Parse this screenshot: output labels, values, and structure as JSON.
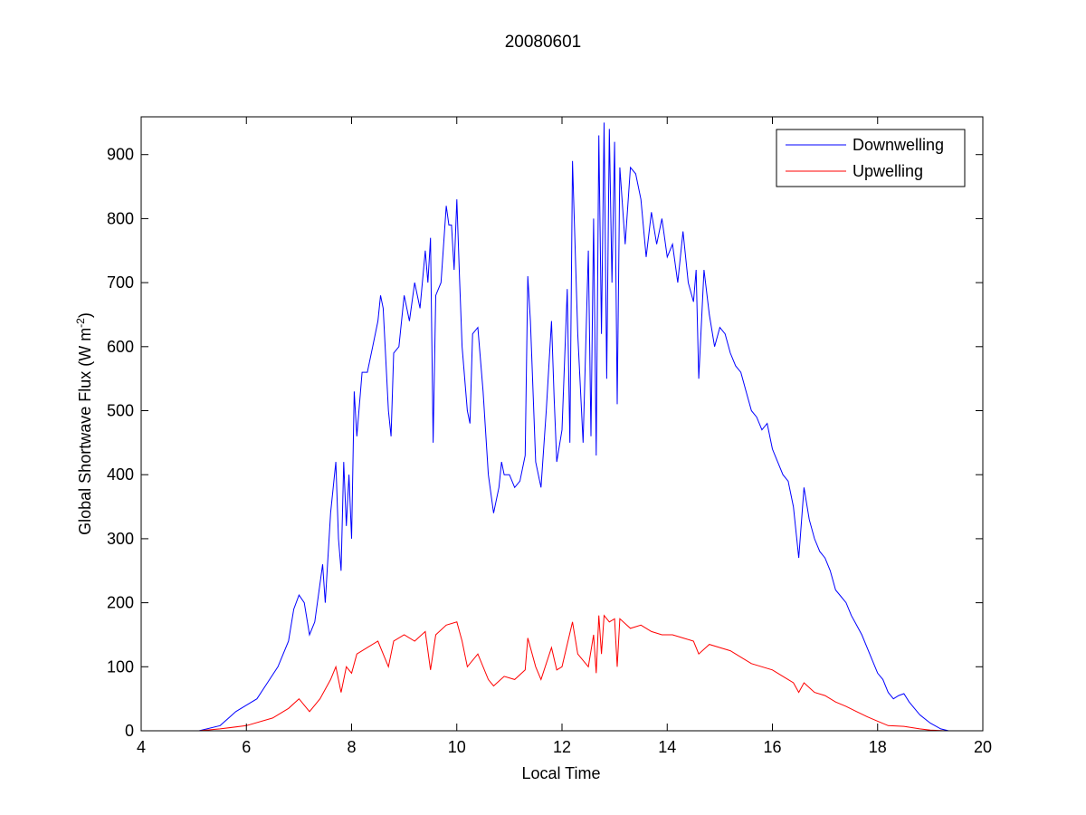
{
  "chart_data": {
    "type": "line",
    "title": "20080601",
    "xlabel": "Local Time",
    "ylabel": "Global Shortwave Flux (W m",
    "ylabel_sup": "-2",
    "ylabel_close": ")",
    "xlim": [
      4,
      20
    ],
    "ylim": [
      0,
      959
    ],
    "xticks": [
      4,
      6,
      8,
      10,
      12,
      14,
      16,
      18,
      20
    ],
    "yticks": [
      0,
      100,
      200,
      300,
      400,
      500,
      600,
      700,
      800,
      900
    ],
    "grid": false,
    "legend_placement": "top-right",
    "series": [
      {
        "name": "Downwelling",
        "color": "#0000ff",
        "points": [
          [
            5.1,
            0
          ],
          [
            5.5,
            8
          ],
          [
            5.8,
            30
          ],
          [
            6.0,
            40
          ],
          [
            6.2,
            50
          ],
          [
            6.4,
            75
          ],
          [
            6.6,
            100
          ],
          [
            6.8,
            140
          ],
          [
            6.9,
            190
          ],
          [
            7.0,
            212
          ],
          [
            7.1,
            200
          ],
          [
            7.2,
            150
          ],
          [
            7.3,
            170
          ],
          [
            7.4,
            230
          ],
          [
            7.45,
            260
          ],
          [
            7.5,
            200
          ],
          [
            7.6,
            340
          ],
          [
            7.7,
            420
          ],
          [
            7.75,
            300
          ],
          [
            7.8,
            250
          ],
          [
            7.85,
            420
          ],
          [
            7.9,
            320
          ],
          [
            7.95,
            400
          ],
          [
            8.0,
            300
          ],
          [
            8.05,
            530
          ],
          [
            8.1,
            460
          ],
          [
            8.2,
            560
          ],
          [
            8.3,
            560
          ],
          [
            8.4,
            600
          ],
          [
            8.5,
            640
          ],
          [
            8.55,
            680
          ],
          [
            8.6,
            660
          ],
          [
            8.7,
            500
          ],
          [
            8.75,
            460
          ],
          [
            8.8,
            590
          ],
          [
            8.9,
            600
          ],
          [
            9.0,
            680
          ],
          [
            9.1,
            640
          ],
          [
            9.2,
            700
          ],
          [
            9.3,
            660
          ],
          [
            9.4,
            750
          ],
          [
            9.45,
            700
          ],
          [
            9.5,
            770
          ],
          [
            9.55,
            450
          ],
          [
            9.6,
            680
          ],
          [
            9.7,
            700
          ],
          [
            9.8,
            820
          ],
          [
            9.85,
            790
          ],
          [
            9.9,
            790
          ],
          [
            9.95,
            720
          ],
          [
            10.0,
            830
          ],
          [
            10.05,
            710
          ],
          [
            10.1,
            600
          ],
          [
            10.2,
            500
          ],
          [
            10.25,
            480
          ],
          [
            10.3,
            620
          ],
          [
            10.4,
            630
          ],
          [
            10.5,
            530
          ],
          [
            10.6,
            400
          ],
          [
            10.7,
            340
          ],
          [
            10.8,
            380
          ],
          [
            10.85,
            420
          ],
          [
            10.9,
            400
          ],
          [
            11.0,
            400
          ],
          [
            11.1,
            380
          ],
          [
            11.2,
            390
          ],
          [
            11.3,
            430
          ],
          [
            11.35,
            710
          ],
          [
            11.4,
            640
          ],
          [
            11.5,
            420
          ],
          [
            11.6,
            380
          ],
          [
            11.7,
            500
          ],
          [
            11.8,
            640
          ],
          [
            11.85,
            520
          ],
          [
            11.9,
            420
          ],
          [
            12.0,
            470
          ],
          [
            12.1,
            690
          ],
          [
            12.15,
            450
          ],
          [
            12.2,
            890
          ],
          [
            12.3,
            620
          ],
          [
            12.4,
            450
          ],
          [
            12.5,
            750
          ],
          [
            12.55,
            460
          ],
          [
            12.6,
            800
          ],
          [
            12.65,
            430
          ],
          [
            12.7,
            930
          ],
          [
            12.75,
            620
          ],
          [
            12.8,
            950
          ],
          [
            12.85,
            550
          ],
          [
            12.9,
            940
          ],
          [
            12.95,
            700
          ],
          [
            13.0,
            920
          ],
          [
            13.05,
            510
          ],
          [
            13.1,
            880
          ],
          [
            13.2,
            760
          ],
          [
            13.3,
            880
          ],
          [
            13.4,
            870
          ],
          [
            13.5,
            830
          ],
          [
            13.6,
            740
          ],
          [
            13.7,
            810
          ],
          [
            13.8,
            760
          ],
          [
            13.9,
            800
          ],
          [
            14.0,
            740
          ],
          [
            14.1,
            760
          ],
          [
            14.2,
            700
          ],
          [
            14.3,
            780
          ],
          [
            14.4,
            700
          ],
          [
            14.5,
            670
          ],
          [
            14.55,
            720
          ],
          [
            14.6,
            550
          ],
          [
            14.7,
            720
          ],
          [
            14.8,
            650
          ],
          [
            14.9,
            600
          ],
          [
            15.0,
            630
          ],
          [
            15.1,
            620
          ],
          [
            15.2,
            590
          ],
          [
            15.3,
            570
          ],
          [
            15.4,
            560
          ],
          [
            15.5,
            530
          ],
          [
            15.6,
            500
          ],
          [
            15.7,
            490
          ],
          [
            15.8,
            470
          ],
          [
            15.9,
            480
          ],
          [
            16.0,
            440
          ],
          [
            16.1,
            420
          ],
          [
            16.2,
            400
          ],
          [
            16.3,
            390
          ],
          [
            16.4,
            350
          ],
          [
            16.5,
            270
          ],
          [
            16.6,
            380
          ],
          [
            16.7,
            330
          ],
          [
            16.8,
            300
          ],
          [
            16.9,
            280
          ],
          [
            17.0,
            270
          ],
          [
            17.1,
            250
          ],
          [
            17.2,
            220
          ],
          [
            17.3,
            210
          ],
          [
            17.4,
            200
          ],
          [
            17.5,
            180
          ],
          [
            17.6,
            165
          ],
          [
            17.7,
            150
          ],
          [
            17.8,
            130
          ],
          [
            17.9,
            110
          ],
          [
            18.0,
            90
          ],
          [
            18.1,
            80
          ],
          [
            18.2,
            60
          ],
          [
            18.3,
            50
          ],
          [
            18.4,
            55
          ],
          [
            18.5,
            58
          ],
          [
            18.6,
            45
          ],
          [
            18.8,
            25
          ],
          [
            19.0,
            12
          ],
          [
            19.2,
            3
          ],
          [
            19.35,
            0
          ]
        ]
      },
      {
        "name": "Upwelling",
        "color": "#ff0000",
        "points": [
          [
            5.1,
            0
          ],
          [
            5.5,
            3
          ],
          [
            6.0,
            8
          ],
          [
            6.5,
            20
          ],
          [
            6.8,
            35
          ],
          [
            7.0,
            50
          ],
          [
            7.2,
            30
          ],
          [
            7.4,
            50
          ],
          [
            7.6,
            80
          ],
          [
            7.7,
            100
          ],
          [
            7.8,
            60
          ],
          [
            7.9,
            100
          ],
          [
            8.0,
            90
          ],
          [
            8.1,
            120
          ],
          [
            8.3,
            130
          ],
          [
            8.5,
            140
          ],
          [
            8.7,
            100
          ],
          [
            8.8,
            140
          ],
          [
            9.0,
            150
          ],
          [
            9.2,
            140
          ],
          [
            9.4,
            155
          ],
          [
            9.5,
            95
          ],
          [
            9.6,
            150
          ],
          [
            9.8,
            165
          ],
          [
            10.0,
            170
          ],
          [
            10.1,
            140
          ],
          [
            10.2,
            100
          ],
          [
            10.4,
            120
          ],
          [
            10.6,
            80
          ],
          [
            10.7,
            70
          ],
          [
            10.9,
            85
          ],
          [
            11.1,
            80
          ],
          [
            11.3,
            95
          ],
          [
            11.35,
            145
          ],
          [
            11.5,
            100
          ],
          [
            11.6,
            80
          ],
          [
            11.8,
            130
          ],
          [
            11.9,
            95
          ],
          [
            12.0,
            100
          ],
          [
            12.2,
            170
          ],
          [
            12.3,
            120
          ],
          [
            12.5,
            100
          ],
          [
            12.6,
            150
          ],
          [
            12.65,
            90
          ],
          [
            12.7,
            180
          ],
          [
            12.75,
            120
          ],
          [
            12.8,
            180
          ],
          [
            12.9,
            170
          ],
          [
            13.0,
            175
          ],
          [
            13.05,
            100
          ],
          [
            13.1,
            175
          ],
          [
            13.3,
            160
          ],
          [
            13.5,
            165
          ],
          [
            13.7,
            155
          ],
          [
            13.9,
            150
          ],
          [
            14.1,
            150
          ],
          [
            14.3,
            145
          ],
          [
            14.5,
            140
          ],
          [
            14.6,
            120
          ],
          [
            14.8,
            135
          ],
          [
            15.0,
            130
          ],
          [
            15.2,
            125
          ],
          [
            15.4,
            115
          ],
          [
            15.6,
            105
          ],
          [
            15.8,
            100
          ],
          [
            16.0,
            95
          ],
          [
            16.2,
            85
          ],
          [
            16.4,
            75
          ],
          [
            16.5,
            60
          ],
          [
            16.6,
            75
          ],
          [
            16.8,
            60
          ],
          [
            17.0,
            55
          ],
          [
            17.2,
            45
          ],
          [
            17.4,
            38
          ],
          [
            17.6,
            30
          ],
          [
            17.8,
            22
          ],
          [
            18.0,
            15
          ],
          [
            18.2,
            8
          ],
          [
            18.5,
            7
          ],
          [
            18.8,
            3
          ],
          [
            19.0,
            1
          ],
          [
            19.3,
            0
          ]
        ]
      }
    ]
  }
}
